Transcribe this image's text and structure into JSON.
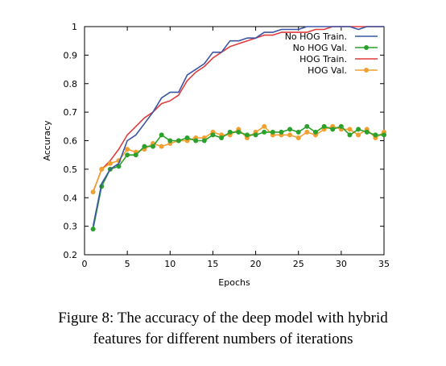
{
  "chart_data": {
    "type": "line",
    "xlabel": "Epochs",
    "ylabel": "Accuracy",
    "xlim": [
      0,
      35
    ],
    "ylim": [
      0.2,
      1.0
    ],
    "xticks": [
      0,
      5,
      10,
      15,
      20,
      25,
      30,
      35
    ],
    "yticks": [
      0.2,
      0.3,
      0.4,
      0.5,
      0.6,
      0.7,
      0.8,
      0.9,
      1
    ],
    "grid": false,
    "legend_position": "top-right",
    "x": [
      1,
      2,
      3,
      4,
      5,
      6,
      7,
      8,
      9,
      10,
      11,
      12,
      13,
      14,
      15,
      16,
      17,
      18,
      19,
      20,
      21,
      22,
      23,
      24,
      25,
      26,
      27,
      28,
      29,
      30,
      31,
      32,
      33,
      34,
      35
    ],
    "series": [
      {
        "name": "No HOG Train.",
        "color": "#3a55a4",
        "marker": "none",
        "values": [
          0.3,
          0.45,
          0.5,
          0.52,
          0.6,
          0.62,
          0.66,
          0.7,
          0.75,
          0.77,
          0.77,
          0.83,
          0.85,
          0.87,
          0.91,
          0.91,
          0.95,
          0.95,
          0.96,
          0.96,
          0.98,
          0.98,
          0.99,
          0.99,
          0.99,
          1.0,
          1.0,
          1.0,
          1.0,
          1.0,
          1.0,
          0.99,
          1.0,
          1.0,
          1.0
        ]
      },
      {
        "name": "No HOG Val.",
        "color": "#2ca02c",
        "marker": "circle",
        "values": [
          0.29,
          0.44,
          0.5,
          0.51,
          0.55,
          0.55,
          0.58,
          0.58,
          0.62,
          0.6,
          0.6,
          0.61,
          0.6,
          0.6,
          0.62,
          0.61,
          0.63,
          0.63,
          0.62,
          0.62,
          0.63,
          0.63,
          0.63,
          0.64,
          0.63,
          0.65,
          0.63,
          0.65,
          0.64,
          0.65,
          0.62,
          0.64,
          0.63,
          0.62,
          0.62
        ]
      },
      {
        "name": "HOG Train.",
        "color": "#e03c3c",
        "marker": "none",
        "values": [
          0.42,
          0.5,
          0.53,
          0.57,
          0.62,
          0.65,
          0.68,
          0.7,
          0.73,
          0.74,
          0.76,
          0.81,
          0.84,
          0.86,
          0.89,
          0.91,
          0.93,
          0.94,
          0.95,
          0.96,
          0.97,
          0.97,
          0.98,
          0.98,
          0.98,
          0.98,
          0.99,
          0.99,
          1.0,
          1.0,
          1.0,
          1.0,
          1.0,
          1.0,
          1.0
        ]
      },
      {
        "name": "HOG Val.",
        "color": "#f0a030",
        "marker": "circle",
        "values": [
          0.42,
          0.5,
          0.52,
          0.53,
          0.57,
          0.56,
          0.57,
          0.59,
          0.58,
          0.59,
          0.6,
          0.6,
          0.61,
          0.61,
          0.63,
          0.62,
          0.62,
          0.64,
          0.61,
          0.63,
          0.65,
          0.62,
          0.62,
          0.62,
          0.61,
          0.63,
          0.62,
          0.64,
          0.65,
          0.64,
          0.64,
          0.62,
          0.64,
          0.61,
          0.63
        ]
      }
    ]
  },
  "caption": {
    "line1": "Figure 8: The accuracy of the deep model with hybrid",
    "line2": "features for different numbers of iterations"
  }
}
